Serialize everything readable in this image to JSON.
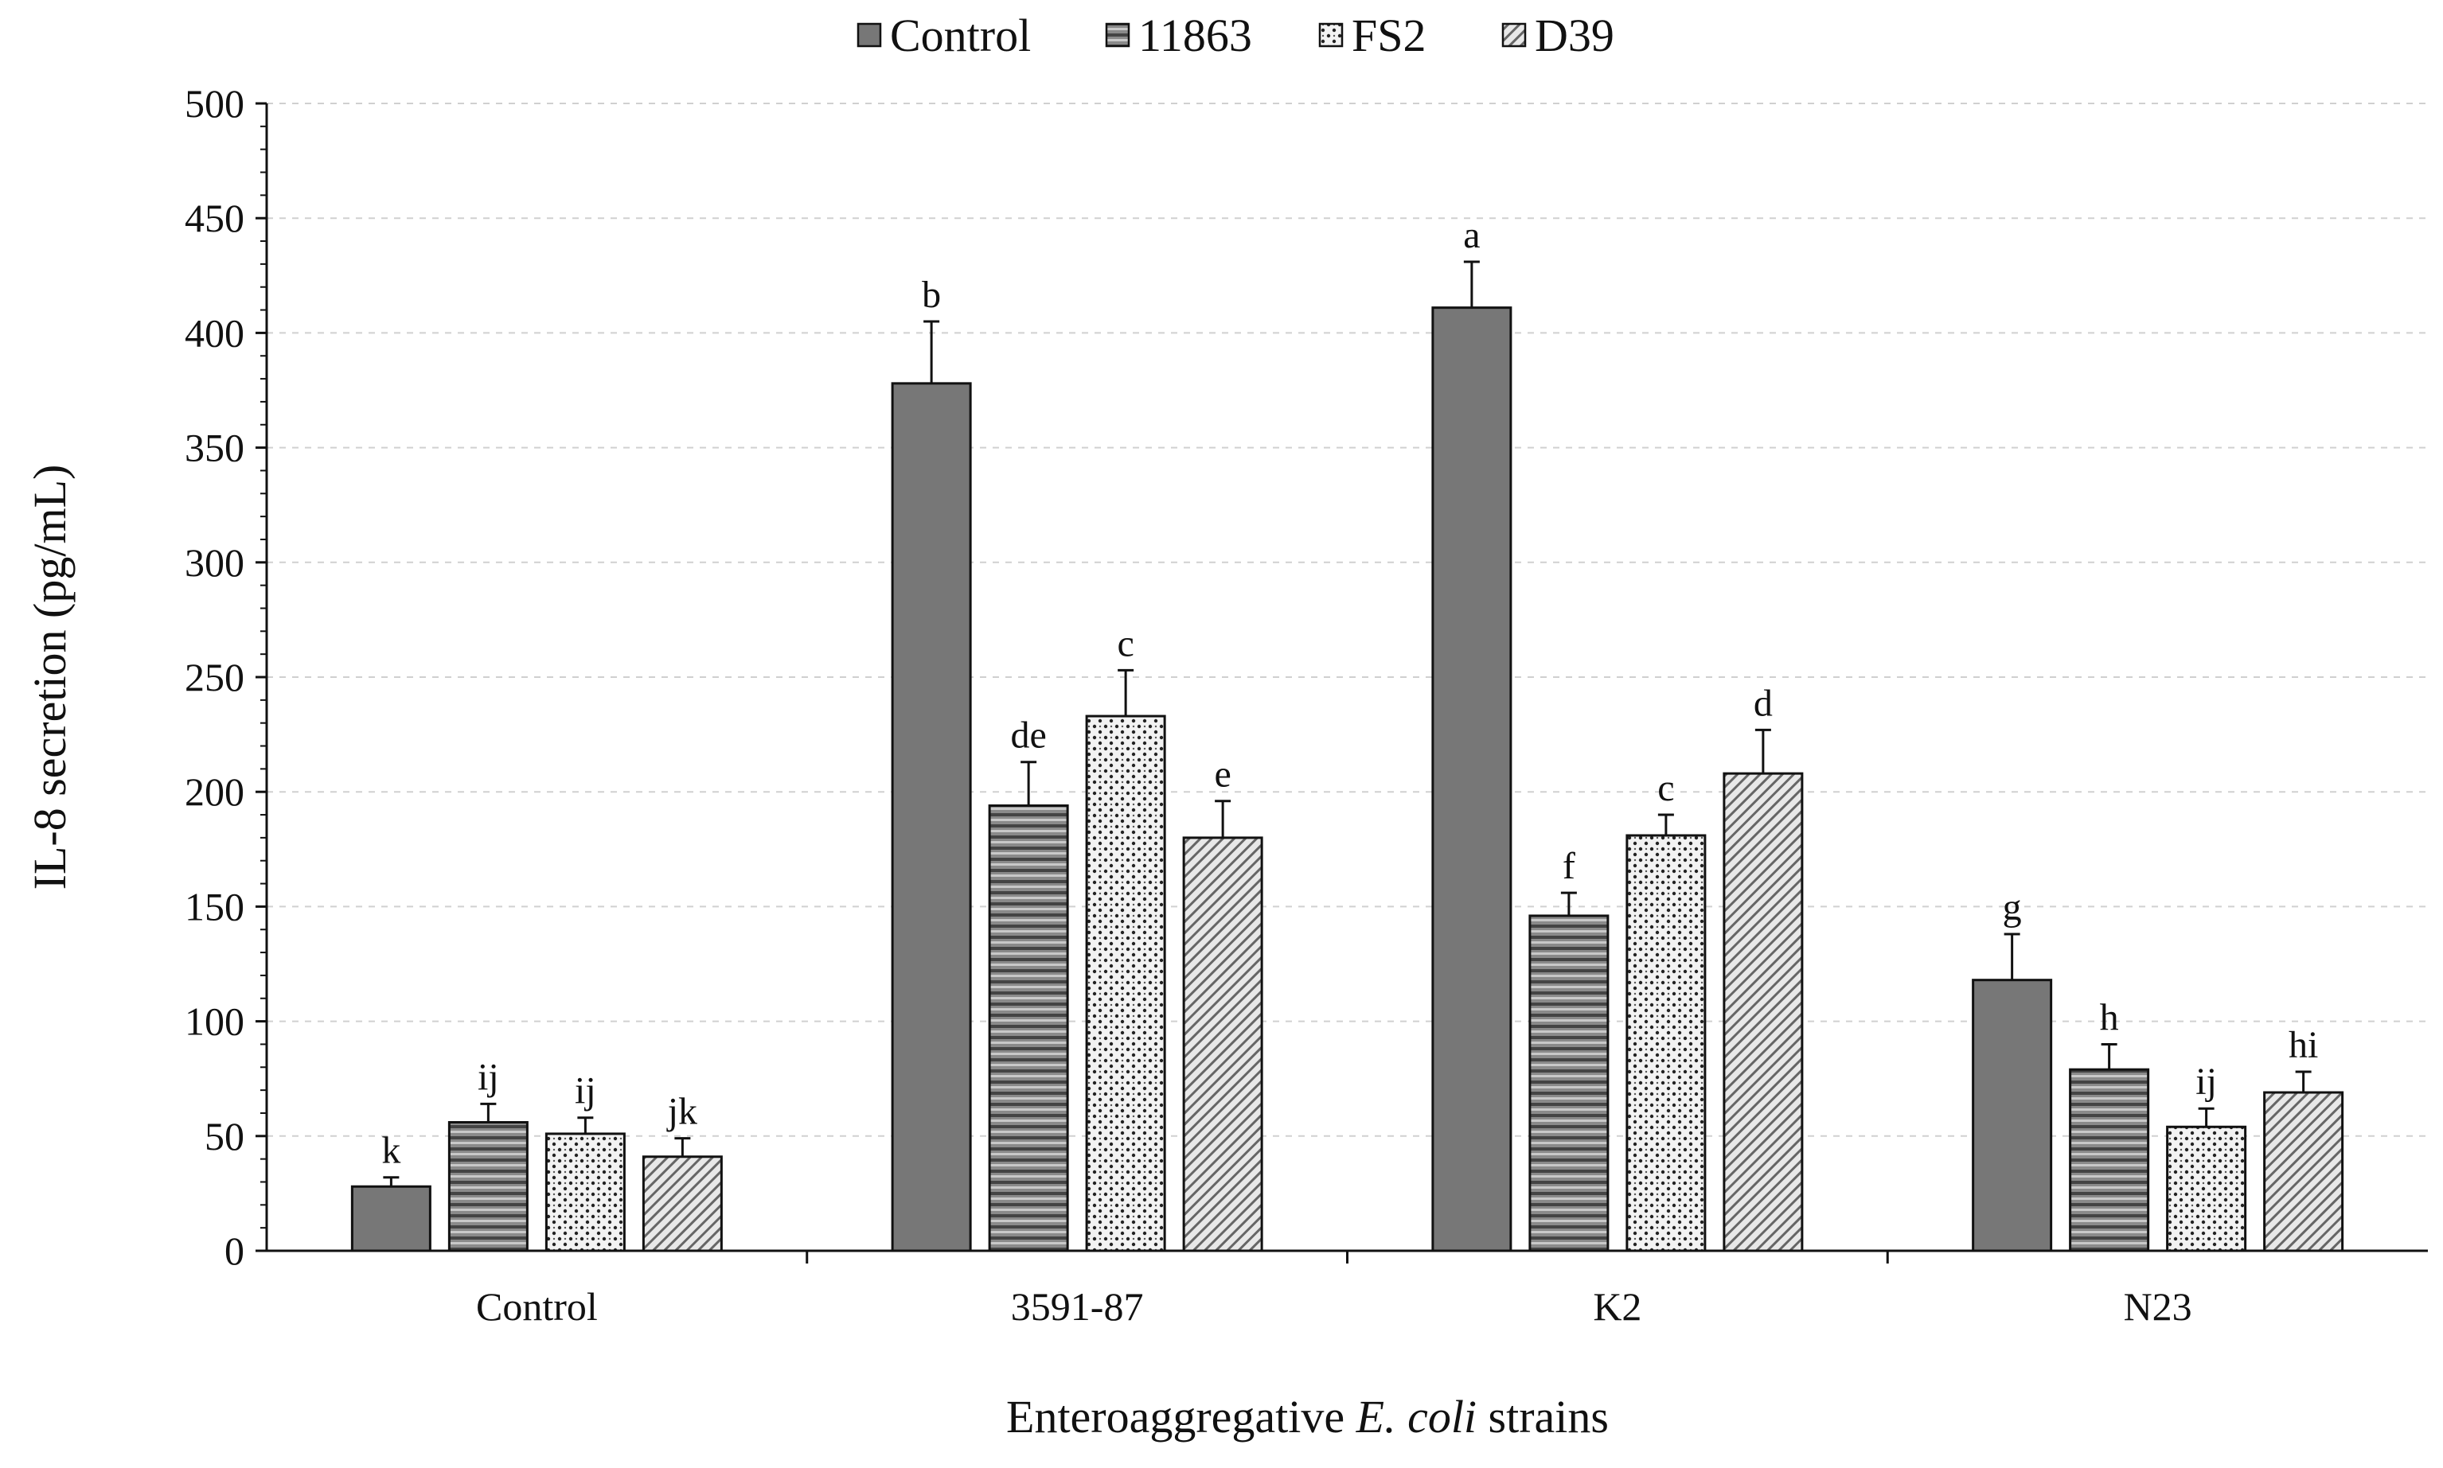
{
  "chart_data": {
    "type": "bar",
    "title": "",
    "xlabel_prefix": "Enteroaggregative ",
    "xlabel_italic": "E. coli",
    "xlabel_suffix": " strains",
    "ylabel": "IL-8 secretion (pg/mL)",
    "ylim": [
      0,
      500
    ],
    "yticks": [
      "0",
      "50",
      "100",
      "150",
      "200",
      "250",
      "300",
      "350",
      "400",
      "450",
      "500"
    ],
    "grid": "horizontal dashed",
    "legend_position": "top",
    "categories": [
      "Control",
      "3591-87",
      "K2",
      "N23"
    ],
    "series": [
      {
        "name": "Control",
        "pattern": "solid-gray",
        "values": [
          28,
          378,
          411,
          118
        ],
        "errors": [
          4,
          27,
          20,
          20
        ],
        "labels": [
          "k",
          "b",
          "a",
          "g"
        ]
      },
      {
        "name": "11863",
        "pattern": "horizontal-stripes",
        "values": [
          56,
          194,
          146,
          79
        ],
        "errors": [
          8,
          19,
          10,
          11
        ],
        "labels": [
          "ij",
          "de",
          "f",
          "h"
        ]
      },
      {
        "name": "FS2",
        "pattern": "dots",
        "values": [
          51,
          233,
          181,
          54
        ],
        "errors": [
          7,
          20,
          9,
          8
        ],
        "labels": [
          "ij",
          "c",
          "c",
          "ij"
        ]
      },
      {
        "name": "D39",
        "pattern": "diagonal",
        "values": [
          41,
          180,
          208,
          69
        ],
        "errors": [
          8,
          16,
          19,
          9
        ],
        "labels": [
          "jk",
          "e",
          "d",
          "hi"
        ]
      }
    ]
  }
}
